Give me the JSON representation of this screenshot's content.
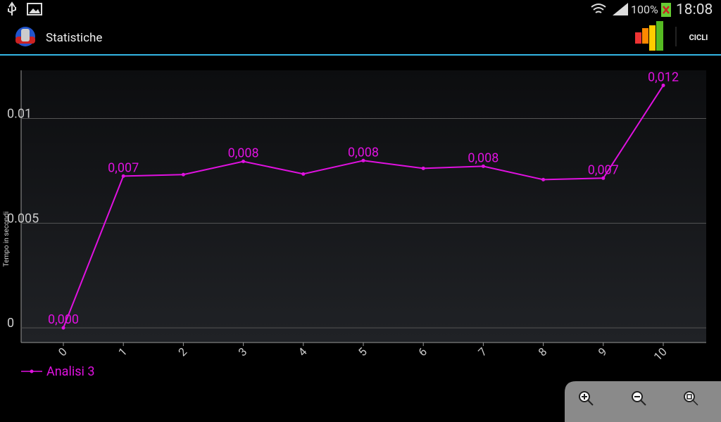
{
  "status_bar": {
    "battery": "100%",
    "time": "18:08"
  },
  "app_bar": {
    "title": "Statistiche",
    "action": "CICLI"
  },
  "chart_data": {
    "type": "line",
    "y_label": "Tempo in secondi",
    "x": [
      0,
      1,
      2,
      3,
      4,
      5,
      6,
      7,
      8,
      9,
      10
    ],
    "series": [
      {
        "name": "Analisi 3",
        "color": "#e011e0",
        "values": [
          0,
          0.00725,
          0.00732,
          0.00795,
          0.00735,
          0.00799,
          0.00762,
          0.00772,
          0.00708,
          0.00715,
          0.01158
        ],
        "value_labels": [
          "0,000",
          "0,007",
          null,
          "0,008",
          null,
          "0,008",
          null,
          "0,008",
          null,
          "0,007",
          "0,012"
        ]
      }
    ],
    "xlim": [
      -0.704,
      10.716
    ],
    "xticks": [
      0,
      1,
      2,
      3,
      4,
      5,
      6,
      7,
      8,
      9,
      10
    ],
    "ylim": [
      -0.0007,
      0.0123
    ],
    "yticks": [
      0,
      0.005,
      0.01
    ],
    "grid": true
  }
}
